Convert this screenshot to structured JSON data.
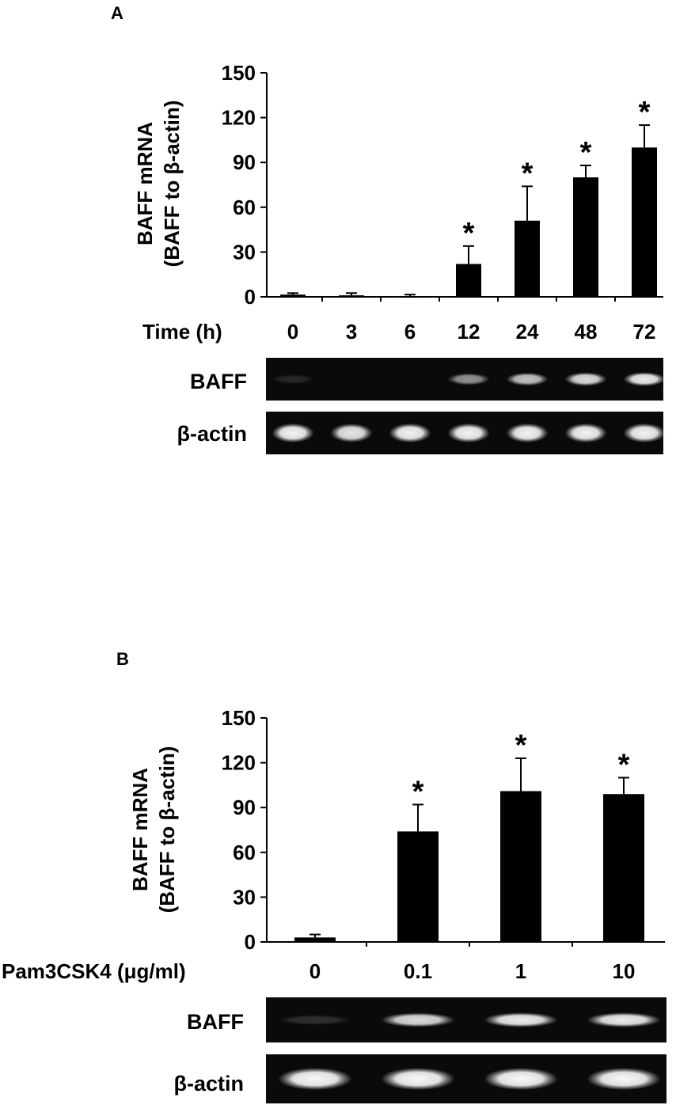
{
  "chart_data": [
    {
      "panel": "A",
      "type": "bar",
      "ylabel_line1": "BAFF mRNA",
      "ylabel_line2": "(BAFF to β-actin)",
      "xlabel": "Time (h)",
      "ylim": [
        0,
        150
      ],
      "yticks": [
        0,
        30,
        60,
        90,
        120,
        150
      ],
      "categories": [
        "0",
        "3",
        "6",
        "12",
        "24",
        "48",
        "72"
      ],
      "values": [
        1.5,
        1,
        0.5,
        22,
        51,
        80,
        100
      ],
      "errors": [
        1,
        1.5,
        1,
        12,
        23,
        8,
        15
      ],
      "significant": [
        false,
        false,
        false,
        true,
        true,
        true,
        true
      ],
      "significance_mark": "*",
      "gel_rows": [
        {
          "label": "BAFF",
          "intensities": [
            0.12,
            0,
            0,
            0.55,
            0.75,
            0.85,
            0.92
          ]
        },
        {
          "label": "β-actin",
          "intensities": [
            0.95,
            0.9,
            0.95,
            0.95,
            0.95,
            0.95,
            0.95
          ]
        }
      ]
    },
    {
      "panel": "B",
      "type": "bar",
      "ylabel_line1": "BAFF mRNA",
      "ylabel_line2": "(BAFF to β-actin)",
      "xlabel": "Pam3CSK4 (μg/ml)",
      "ylim": [
        0,
        150
      ],
      "yticks": [
        0,
        30,
        60,
        90,
        120,
        150
      ],
      "categories": [
        "0",
        "0.1",
        "1",
        "10"
      ],
      "values": [
        3,
        74,
        101,
        99
      ],
      "errors": [
        2,
        18,
        22,
        11
      ],
      "significant": [
        false,
        true,
        true,
        true
      ],
      "significance_mark": "*",
      "gel_rows": [
        {
          "label": "BAFF",
          "intensities": [
            0.15,
            0.85,
            0.92,
            0.92
          ]
        },
        {
          "label": "β-actin",
          "intensities": [
            0.97,
            0.97,
            0.97,
            0.97
          ]
        }
      ]
    }
  ]
}
